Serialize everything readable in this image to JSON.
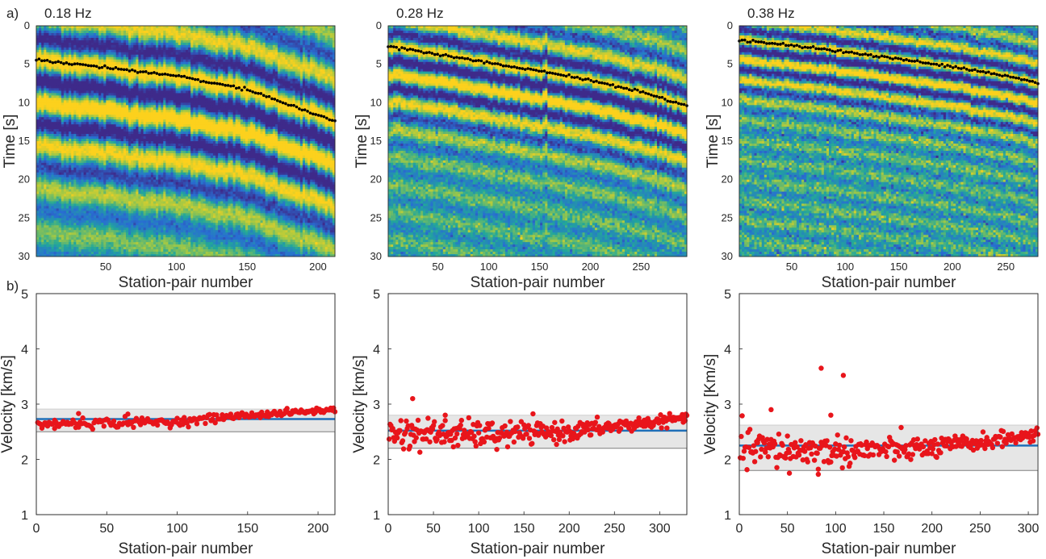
{
  "figure": {
    "label_a": "a)",
    "label_b": "b)"
  },
  "colors": {
    "wave_low": "#3e2a8a",
    "wave_mid": "#22a79a",
    "wave_high": "#fcd11d",
    "picks": "#000000",
    "points": "#e8151b",
    "mean_line": "#1f6fb8",
    "band": "#e6e6e6",
    "band_edge": "#7f7f7f",
    "axes": "#262626"
  },
  "chart_data": [
    {
      "type": "heatmap",
      "id": "a1",
      "title": "0.18 Hz",
      "xlabel": "Station-pair number",
      "ylabel": "Time [s]",
      "xlim": [
        1,
        212
      ],
      "ylim": [
        30,
        0
      ],
      "xticks": [
        50,
        100,
        150,
        200
      ],
      "yticks": [
        0,
        5,
        10,
        15,
        20,
        25,
        30
      ],
      "picks": {
        "x": [
          1,
          50,
          100,
          150,
          212
        ],
        "y": [
          4.4,
          5.4,
          6.5,
          8.3,
          12.4
        ]
      },
      "period_s": 5.6,
      "decay_s": 9.0,
      "noise": 0.22
    },
    {
      "type": "heatmap",
      "id": "a2",
      "title": "0.28 Hz",
      "xlabel": "Station-pair number",
      "ylabel": "Time [s]",
      "xlim": [
        1,
        295
      ],
      "ylim": [
        30,
        0
      ],
      "xticks": [
        50,
        100,
        150,
        200,
        250
      ],
      "yticks": [
        0,
        5,
        10,
        15,
        20,
        25,
        30
      ],
      "picks": {
        "x": [
          1,
          50,
          100,
          150,
          200,
          250,
          295
        ],
        "y": [
          2.7,
          3.7,
          4.8,
          5.9,
          7.1,
          8.6,
          10.4
        ]
      },
      "period_s": 3.6,
      "decay_s": 5.5,
      "noise": 0.35
    },
    {
      "type": "heatmap",
      "id": "a3",
      "title": "0.38 Hz",
      "xlabel": "Station-pair number",
      "ylabel": "Time [s]",
      "xlim": [
        1,
        280
      ],
      "ylim": [
        30,
        0
      ],
      "xticks": [
        50,
        100,
        150,
        200,
        250
      ],
      "yticks": [
        0,
        5,
        10,
        15,
        20,
        25,
        30
      ],
      "picks": {
        "x": [
          1,
          50,
          100,
          150,
          200,
          250,
          280
        ],
        "y": [
          1.8,
          2.6,
          3.4,
          4.3,
          5.3,
          6.5,
          7.4
        ]
      },
      "period_s": 2.6,
      "decay_s": 4.2,
      "noise": 0.45
    },
    {
      "type": "scatter",
      "id": "b1",
      "xlabel": "Station-pair number",
      "ylabel": "Velocity [km/s]",
      "xlim": [
        0,
        212
      ],
      "ylim": [
        1,
        5
      ],
      "xticks": [
        0,
        50,
        100,
        150,
        200
      ],
      "yticks": [
        1,
        2,
        3,
        4,
        5
      ],
      "mean": 2.73,
      "band": [
        2.5,
        2.91
      ],
      "n": 212,
      "trend": {
        "x": [
          0,
          100,
          140,
          212
        ],
        "y": [
          2.64,
          2.68,
          2.78,
          2.9
        ]
      },
      "scatter_sd": [
        0.05,
        0.025
      ],
      "outliers": [
        {
          "x": 30,
          "y": 2.83
        },
        {
          "x": 65,
          "y": 2.82
        },
        {
          "x": 13,
          "y": 2.56
        }
      ]
    },
    {
      "type": "scatter",
      "id": "b2",
      "xlabel": "Station-pair number",
      "ylabel": "Velocity [km/s]",
      "xlim": [
        0,
        330
      ],
      "ylim": [
        1,
        5
      ],
      "xticks": [
        0,
        50,
        100,
        150,
        200,
        250,
        300
      ],
      "yticks": [
        1,
        2,
        3,
        4,
        5
      ],
      "mean": 2.52,
      "band": [
        2.2,
        2.8
      ],
      "n": 330,
      "trend": {
        "x": [
          0,
          100,
          200,
          330
        ],
        "y": [
          2.48,
          2.45,
          2.5,
          2.75
        ]
      },
      "scatter_sd": [
        0.15,
        0.04
      ],
      "outliers": [
        {
          "x": 27,
          "y": 3.1
        },
        {
          "x": 120,
          "y": 2.18
        },
        {
          "x": 63,
          "y": 2.8
        }
      ]
    },
    {
      "type": "scatter",
      "id": "b3",
      "xlabel": "Station-pair number",
      "ylabel": "Velocity [Km/s]",
      "xlim": [
        0,
        310
      ],
      "ylim": [
        1,
        5
      ],
      "xticks": [
        0,
        50,
        100,
        150,
        200,
        250,
        300
      ],
      "yticks": [
        1,
        2,
        3,
        4,
        5
      ],
      "mean": 2.25,
      "band": [
        1.8,
        2.62
      ],
      "n": 310,
      "trend": {
        "x": [
          0,
          100,
          200,
          310
        ],
        "y": [
          2.2,
          2.15,
          2.2,
          2.45
        ]
      },
      "scatter_sd": [
        0.18,
        0.05
      ],
      "outliers": [
        {
          "x": 85,
          "y": 3.65
        },
        {
          "x": 108,
          "y": 3.52
        },
        {
          "x": 33,
          "y": 2.9
        },
        {
          "x": 95,
          "y": 2.8
        },
        {
          "x": 52,
          "y": 1.75
        },
        {
          "x": 82,
          "y": 1.73
        }
      ]
    }
  ]
}
